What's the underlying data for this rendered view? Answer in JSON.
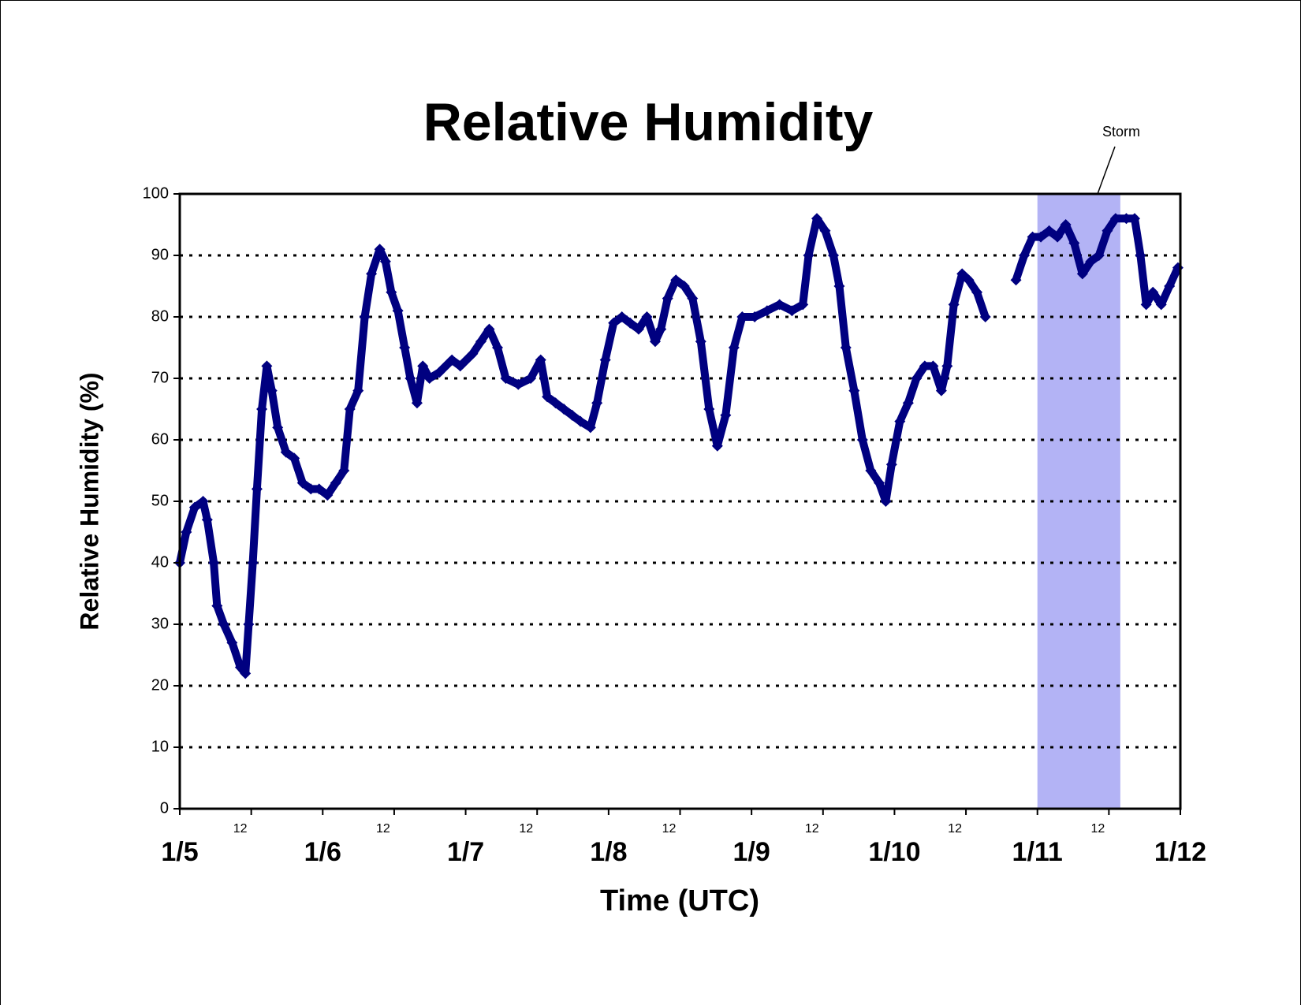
{
  "chart_data": {
    "type": "scatter",
    "title": "Relative Humidity",
    "x_label": "Time (UTC)",
    "y_label": "Relative Humidity (%)",
    "xlim": [
      0,
      7
    ],
    "ylim": [
      0,
      100
    ],
    "yticks": [
      0,
      10,
      20,
      30,
      40,
      50,
      60,
      70,
      80,
      90,
      100
    ],
    "xticks": [
      {
        "value": 0,
        "label": "1/5"
      },
      {
        "value": 0.5,
        "label": "12"
      },
      {
        "value": 1,
        "label": "1/6"
      },
      {
        "value": 1.5,
        "label": "12"
      },
      {
        "value": 2,
        "label": "1/7"
      },
      {
        "value": 2.5,
        "label": "12"
      },
      {
        "value": 3,
        "label": "1/8"
      },
      {
        "value": 3.5,
        "label": "12"
      },
      {
        "value": 4,
        "label": "1/9"
      },
      {
        "value": 4.5,
        "label": "12"
      },
      {
        "value": 5,
        "label": "1/10"
      },
      {
        "value": 5.5,
        "label": "12"
      },
      {
        "value": 6,
        "label": "1/11"
      },
      {
        "value": 6.5,
        "label": "12"
      },
      {
        "value": 7,
        "label": "1/12"
      }
    ],
    "grid": true,
    "shaded_region": {
      "x": [
        6.0,
        6.58
      ],
      "color": "#b3b3f5",
      "label": "Storm"
    },
    "series": [
      {
        "color": "#000080",
        "x": [
          0,
          0.046,
          0.104,
          0.163,
          0.192,
          0.238,
          0.261,
          0.308,
          0.366,
          0.424,
          0.459,
          0.482,
          0.511,
          0.54,
          0.574,
          0.609,
          0.644,
          0.685,
          0.743,
          0.801,
          0.859,
          0.917,
          0.975,
          1.033,
          1.091,
          1.149,
          1.19,
          1.248,
          1.294,
          1.341,
          1.399,
          1.439,
          1.48,
          1.526,
          1.573,
          1.613,
          1.66,
          1.7,
          1.747,
          1.817,
          1.904,
          1.962,
          2.049,
          2.107,
          2.165,
          2.223,
          2.281,
          2.368,
          2.455,
          2.525,
          2.571,
          2.629,
          2.687,
          2.745,
          2.803,
          2.873,
          2.919,
          2.977,
          3.035,
          3.093,
          3.151,
          3.21,
          3.268,
          3.326,
          3.366,
          3.413,
          3.471,
          3.529,
          3.587,
          3.645,
          3.703,
          3.761,
          3.819,
          3.877,
          3.935,
          4.022,
          4.109,
          4.196,
          4.283,
          4.359,
          4.399,
          4.457,
          4.515,
          4.573,
          4.614,
          4.66,
          4.718,
          4.776,
          4.834,
          4.893,
          4.939,
          4.98,
          5.038,
          5.096,
          5.154,
          5.212,
          5.27,
          5.328,
          5.369,
          5.415,
          5.473,
          5.519,
          5.577,
          5.636,
          5.74,
          5.85,
          5.908,
          5.966,
          6.024,
          6.082,
          6.14,
          6.198,
          6.257,
          6.315,
          6.373,
          6.431,
          6.489,
          6.547,
          6.622,
          6.68,
          6.721,
          6.761,
          6.808,
          6.866,
          6.924,
          6.983
        ],
        "values": [
          40,
          45,
          49,
          50,
          47,
          40,
          33,
          30,
          27,
          23,
          22,
          30,
          40,
          52,
          65,
          72,
          68,
          62,
          58,
          57,
          53,
          52,
          52,
          51,
          53,
          55,
          65,
          68,
          80,
          87,
          91,
          89,
          84,
          81,
          75,
          70,
          66,
          72,
          70,
          71,
          73,
          72,
          74,
          76,
          78,
          75,
          70,
          69,
          70,
          73,
          67,
          66,
          65,
          64,
          63,
          62,
          66,
          73,
          79,
          80,
          79,
          78,
          80,
          76,
          78,
          83,
          86,
          85,
          83,
          76,
          65,
          59,
          64,
          75,
          80,
          80,
          81,
          82,
          81,
          82,
          90,
          96,
          94,
          90,
          85,
          75,
          68,
          60,
          55,
          53,
          50,
          56,
          63,
          66,
          70,
          72,
          72,
          68,
          72,
          82,
          87,
          86,
          84,
          80,
          null,
          86,
          90,
          93,
          93,
          94,
          93,
          95,
          92,
          87,
          89,
          90,
          94,
          96,
          96,
          96,
          90,
          82,
          84,
          82,
          85,
          88
        ]
      }
    ]
  }
}
